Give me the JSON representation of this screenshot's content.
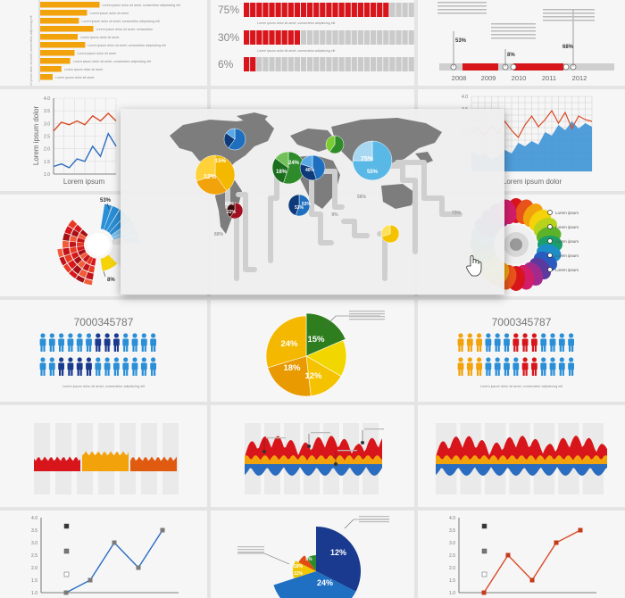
{
  "chart_data": [
    {
      "type": "bar",
      "orientation": "horizontal",
      "bar_color": "#f2a20b",
      "values": [
        0.95,
        0.75,
        0.62,
        0.85,
        0.6,
        0.72,
        0.55,
        0.48,
        0.34,
        0.2
      ],
      "labels": [
        "Lorem ipsum dolor sit amet, consectetur adipisicing elit",
        "Lorem ipsum dolor sit amet",
        "Lorem ipsum dolor sit amet, consectetur adipisicing elit",
        "Lorem ipsum dolor sit amet, consectetur",
        "Lorem ipsum dolor sit amet",
        "Lorem ipsum dolor sit amet, consectetur adipisicing elit",
        "Lorem ipsum dolor sit amet",
        "Lorem ipsum dolor sit amet, consectetur adipisicing elit",
        "Lorem ipsum dolor sit amet",
        "Lorem ipsum dolor sit amet"
      ],
      "ylabel": "Lorem ipsum dolor sit amet, consectetur adipisicing elit"
    },
    {
      "type": "bar",
      "style": "segmented-progress",
      "colors": {
        "filled": "#d7151b",
        "empty": "#cacaca"
      },
      "rows": [
        {
          "label": "75%",
          "value": 75,
          "caption": "Lorem ipsum dolor sit amet, consectetur adipisicing elit"
        },
        {
          "label": "30%",
          "value": 30,
          "caption": "Lorem ipsum dolor sit amet, consectetur adipisicing elit"
        },
        {
          "label": "6%",
          "value": 6,
          "caption": ""
        }
      ]
    },
    {
      "type": "timeline",
      "years": [
        "2008",
        "2009",
        "2010",
        "2011",
        "2012"
      ],
      "callouts": [
        "53%",
        "8%",
        "68%"
      ]
    },
    {
      "type": "line",
      "ylabel": "Lorem ipsum dolor",
      "xlabel": "Lorem ipsum",
      "y_ticks": [
        "1.0",
        "1.5",
        "2.0",
        "2.5",
        "3.0",
        "3.5",
        "4.0"
      ],
      "series": [
        {
          "color": "#d94a26",
          "values": [
            2.7,
            3.05,
            2.95,
            3.1,
            2.95,
            3.3,
            3.1,
            3.4,
            3.1
          ]
        },
        {
          "color": "#2a6cc0",
          "values": [
            1.3,
            1.4,
            1.25,
            1.6,
            1.5,
            2.1,
            1.7,
            2.6,
            2.1
          ]
        }
      ]
    },
    {
      "type": "area",
      "xlabel": "Lorem ipsum dolor",
      "y_ticks": [
        "1.0",
        "1.5",
        "2.0",
        "2.5",
        "3.0",
        "3.5",
        "4.0"
      ]
    },
    {
      "type": "pie",
      "style": "radial-sunburst",
      "callouts": [
        "53%",
        "8%"
      ]
    },
    {
      "type": "map",
      "style": "world-map-pie-markers",
      "labels": [
        "12%",
        "15%",
        "18%",
        "24%",
        "75%",
        "55%",
        "40%",
        "53%",
        "53%",
        "22%",
        "82%",
        "60%",
        "9%",
        "56%",
        "73%"
      ]
    },
    {
      "type": "pie",
      "style": "flower-petals",
      "labels": [
        "Lorem ipsum",
        "Lorem ipsum",
        "Lorem ipsum",
        "Lorem ipsum",
        "Lorem ipsum"
      ]
    },
    {
      "type": "pictograph",
      "title": "7000345787",
      "rows": 2,
      "per_row": 13,
      "caption": "Lorem ipsum dolor sit amet, consectetur adipisicing elit"
    },
    {
      "type": "pie",
      "slices": [
        {
          "label": "24%",
          "value": 24,
          "color": "#f5b800"
        },
        {
          "label": "15%",
          "value": 15,
          "color": "#2e7d1f"
        },
        {
          "label": "12%",
          "value": 12,
          "color": "#f2d600"
        },
        {
          "label": "18%",
          "value": 18,
          "color": "#e99a00"
        },
        {
          "label": "12%",
          "value": 12,
          "color": "#f5c200"
        }
      ],
      "caption": "Lorem ipsum dolor sit amet, consectetur adipisicing elit"
    },
    {
      "type": "pictograph",
      "title": "7000345787",
      "rows": 2,
      "per_row": 13,
      "caption": "Lorem ipsum dolor sit amet, consectetur adipisicing elit"
    },
    {
      "type": "area",
      "style": "stream-bars",
      "colors": [
        "#d7151b",
        "#f2a20b",
        "#e05a10"
      ]
    },
    {
      "type": "area",
      "style": "mirrored-stream",
      "colors": [
        "#d7151b",
        "#f2a20b",
        "#2a6cc0"
      ]
    },
    {
      "type": "area",
      "style": "mirrored-stream",
      "colors": [
        "#d7151b",
        "#f2a20b",
        "#2a6cc0"
      ]
    },
    {
      "type": "line",
      "y_ticks": [
        "1.0",
        "1.5",
        "2.0",
        "2.5",
        "3.0",
        "3.5",
        "4.0"
      ],
      "series": [
        {
          "color": "#2a6cc0",
          "values": [
            1.0,
            1.5,
            3.0,
            2.0,
            3.5
          ]
        }
      ]
    },
    {
      "type": "pie",
      "slices": [
        {
          "label": "12%",
          "value": 12,
          "color": "#1a3a8f"
        },
        {
          "label": "24%",
          "value": 24,
          "color": "#1f6fc2"
        },
        {
          "label": "12%",
          "value": 12,
          "color": "#f2c600"
        },
        {
          "label": "18%",
          "value": 18,
          "color": "#e24a14"
        },
        {
          "label": "8%",
          "value": 8,
          "color": "#2e8b2a"
        }
      ]
    },
    {
      "type": "line",
      "y_ticks": [
        "1.0",
        "1.5",
        "2.0",
        "2.5",
        "3.0",
        "3.5",
        "4.0"
      ],
      "series": [
        {
          "color": "#d94a26",
          "values": [
            1.0,
            2.5,
            1.5,
            3.0,
            3.5
          ]
        }
      ]
    }
  ]
}
